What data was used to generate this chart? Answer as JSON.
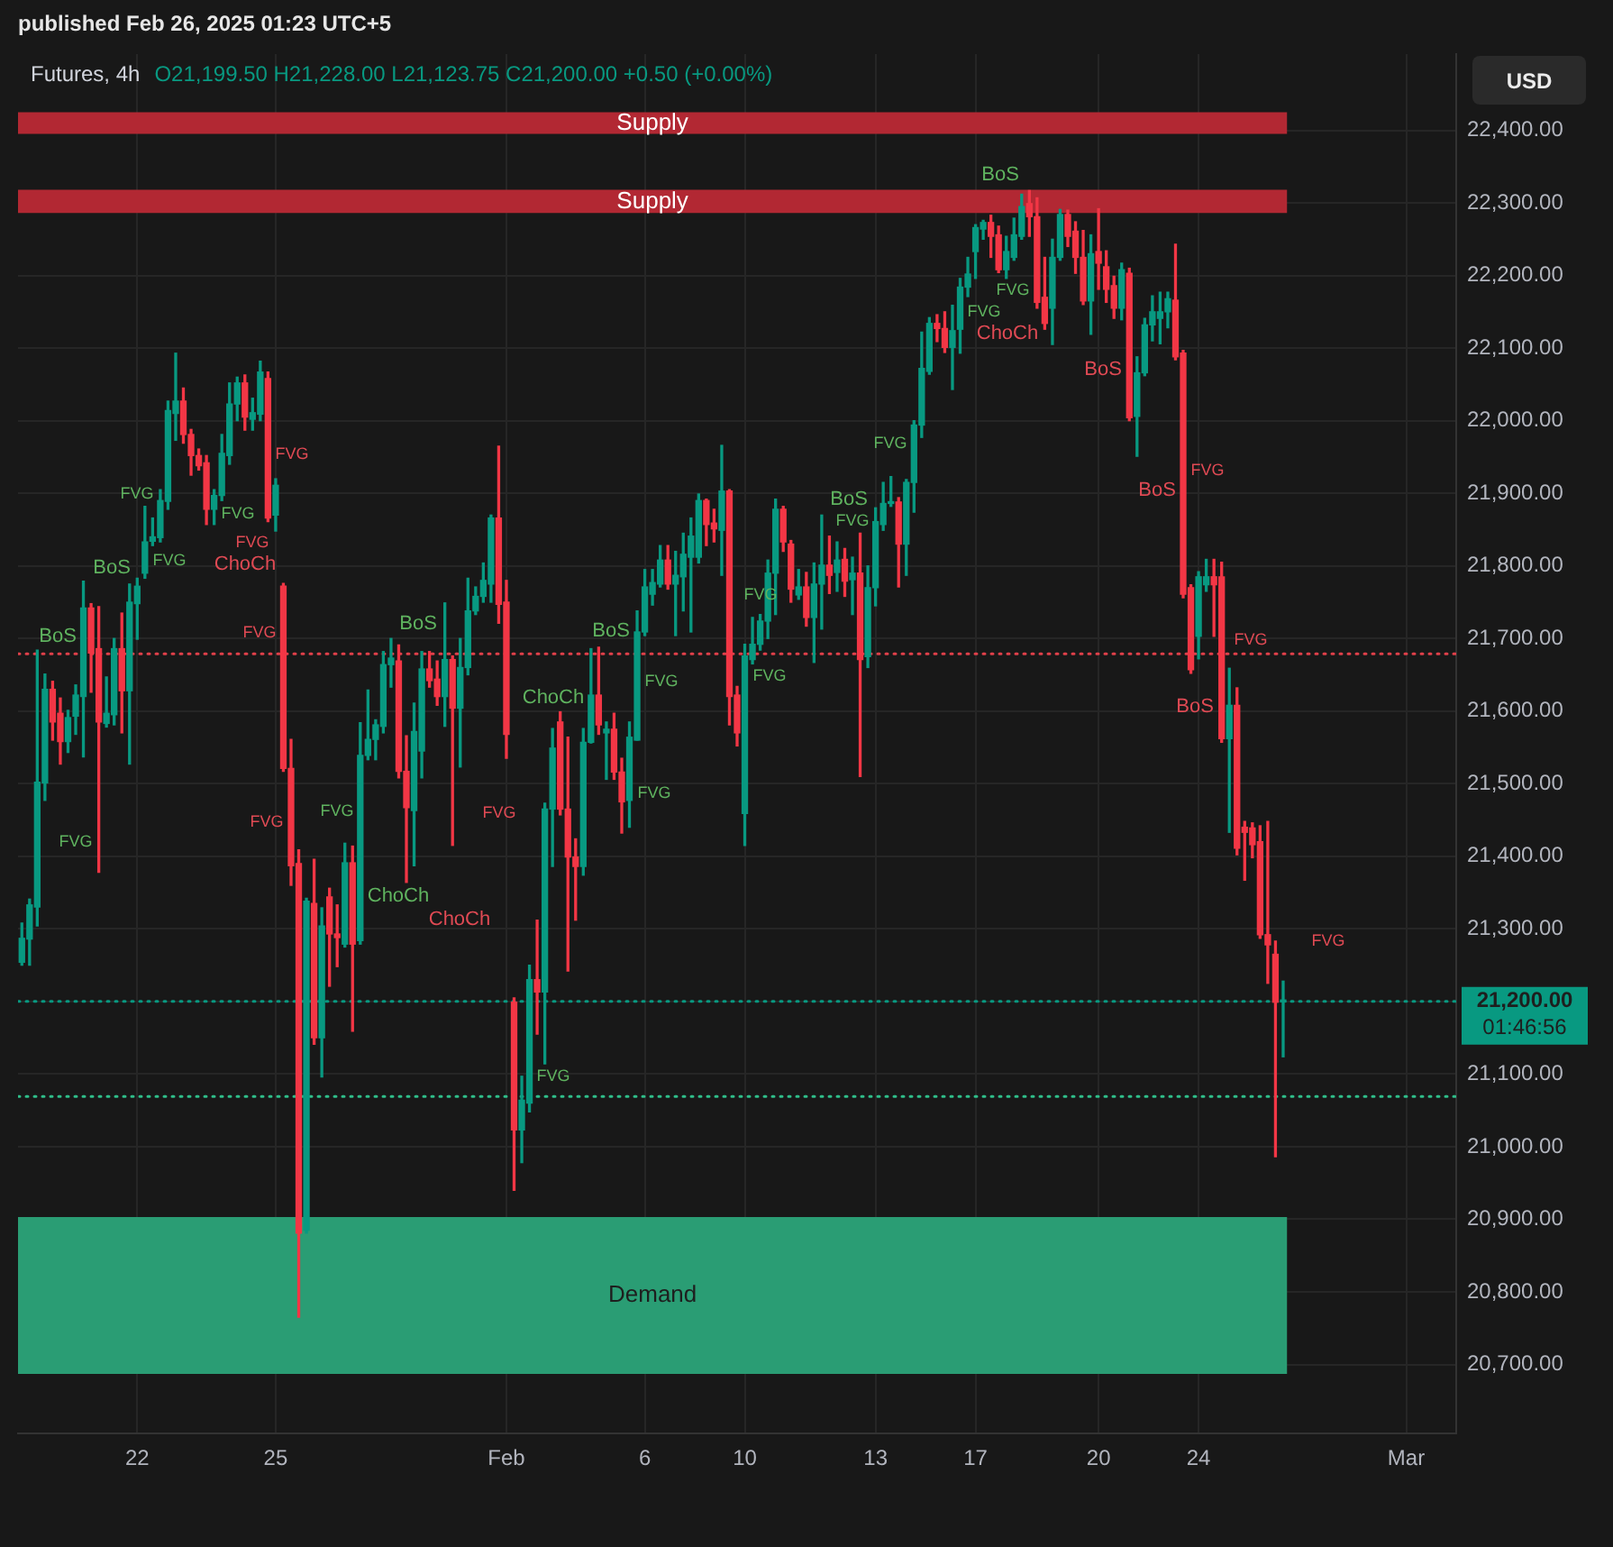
{
  "chart_data": {
    "type": "candlestick",
    "title": "Futures, 4h",
    "subtitle": "O21,199.50 H21,228.00 L21,123.75 C21,200.00 +0.50 (+0.00%)",
    "ylabel": "USD",
    "categories": [
      null,
      null,
      null,
      null,
      null,
      null,
      null,
      null,
      null,
      null,
      null,
      null,
      null,
      null,
      null,
      "22",
      null,
      null,
      null,
      null,
      null,
      null,
      null,
      null,
      null,
      null,
      null,
      null,
      null,
      null,
      null,
      null,
      null,
      "25",
      null,
      null,
      null,
      null,
      null,
      null,
      null,
      null,
      null,
      null,
      null,
      null,
      null,
      null,
      null,
      null,
      null,
      null,
      null,
      null,
      null,
      null,
      null,
      null,
      null,
      null,
      null,
      null,
      null,
      "Feb",
      null,
      null,
      null,
      null,
      null,
      null,
      null,
      null,
      null,
      null,
      null,
      null,
      null,
      null,
      null,
      null,
      null,
      "6",
      null,
      null,
      null,
      null,
      null,
      null,
      null,
      null,
      null,
      null,
      null,
      null,
      "10",
      null,
      null,
      null,
      null,
      null,
      null,
      null,
      null,
      null,
      null,
      null,
      null,
      null,
      null,
      null,
      null,
      "13",
      null,
      null,
      null,
      null,
      null,
      null,
      null,
      null,
      null,
      null,
      null,
      null,
      "17",
      null,
      null,
      null,
      null,
      null,
      null,
      null,
      null,
      null,
      null,
      null,
      null,
      null,
      null,
      null,
      "20",
      null,
      null,
      null,
      null,
      null,
      null,
      null,
      null,
      null,
      null,
      null,
      null,
      "24",
      null,
      null,
      null,
      null,
      null,
      null,
      null,
      null,
      null,
      null,
      null,
      null,
      null,
      null,
      null,
      null,
      null,
      null,
      null,
      null,
      null,
      null,
      null,
      null,
      null,
      null,
      "Mar",
      null,
      null,
      null,
      null,
      null,
      null
    ],
    "ohlc": [
      [
        21254,
        21308,
        21250,
        21287
      ],
      [
        21286,
        21341,
        21250,
        21333
      ],
      [
        21330,
        21684,
        21304,
        21502
      ],
      [
        21501,
        21651,
        21477,
        21630
      ],
      [
        21630,
        21641,
        21560,
        21585
      ],
      [
        21597,
        21618,
        21527,
        21558
      ],
      [
        21558,
        21601,
        21543,
        21591
      ],
      [
        21593,
        21636,
        21568,
        21622
      ],
      [
        21620,
        21779,
        21537,
        21742
      ],
      [
        21742,
        21748,
        21626,
        21680
      ],
      [
        21686,
        21744,
        21378,
        21585
      ],
      [
        21583,
        21647,
        21578,
        21597
      ],
      [
        21595,
        21700,
        21581,
        21686
      ],
      [
        21686,
        21735,
        21570,
        21628
      ],
      [
        21628,
        21775,
        21527,
        21750
      ],
      [
        21748,
        21783,
        21699,
        21772
      ],
      [
        21790,
        21882,
        21783,
        21833
      ],
      [
        21834,
        21866,
        21828,
        21840
      ],
      [
        21839,
        21905,
        21833,
        21890
      ],
      [
        21889,
        22027,
        21878,
        22014
      ],
      [
        22010,
        22093,
        21973,
        22027
      ],
      [
        22027,
        22045,
        21969,
        21981
      ],
      [
        21981,
        21988,
        21925,
        21952
      ],
      [
        21952,
        21961,
        21932,
        21938
      ],
      [
        21942,
        21952,
        21857,
        21878
      ],
      [
        21878,
        21905,
        21857,
        21897
      ],
      [
        21897,
        21981,
        21890,
        21955
      ],
      [
        21952,
        22052,
        21940,
        22023
      ],
      [
        22023,
        22060,
        22000,
        22052
      ],
      [
        22052,
        22063,
        21987,
        22005
      ],
      [
        22002,
        22031,
        21987,
        22011
      ],
      [
        22009,
        22082,
        22000,
        22067
      ],
      [
        22058,
        22067,
        21861,
        21866
      ],
      [
        21870,
        21920,
        21848,
        21911
      ],
      [
        21772,
        21776,
        21517,
        21521
      ],
      [
        21521,
        21561,
        21360,
        21387
      ],
      [
        21390,
        21409,
        20765,
        20881
      ],
      [
        20885,
        21342,
        20881,
        21338
      ],
      [
        21335,
        21396,
        21141,
        21150
      ],
      [
        21150,
        21329,
        21096,
        21304
      ],
      [
        21344,
        21356,
        21221,
        21293
      ],
      [
        21293,
        21333,
        21248,
        21288
      ],
      [
        21279,
        21418,
        21275,
        21391
      ],
      [
        21391,
        21414,
        21159,
        21279
      ],
      [
        21284,
        21584,
        21279,
        21539
      ],
      [
        21539,
        21629,
        21533,
        21561
      ],
      [
        21561,
        21588,
        21533,
        21581
      ],
      [
        21579,
        21682,
        21570,
        21664
      ],
      [
        21664,
        21700,
        21633,
        21673
      ],
      [
        21669,
        21691,
        21508,
        21517
      ],
      [
        21517,
        21566,
        21364,
        21467
      ],
      [
        21463,
        21611,
        21387,
        21572
      ],
      [
        21545,
        21682,
        21508,
        21658
      ],
      [
        21658,
        21682,
        21633,
        21642
      ],
      [
        21644,
        21669,
        21608,
        21620
      ],
      [
        21620,
        21749,
        21579,
        21671
      ],
      [
        21671,
        21676,
        21415,
        21604
      ],
      [
        21604,
        21700,
        21523,
        21660
      ],
      [
        21660,
        21783,
        21650,
        21738
      ],
      [
        21738,
        21771,
        21733,
        21758
      ],
      [
        21758,
        21804,
        21750,
        21780
      ],
      [
        21775,
        21870,
        21750,
        21866
      ],
      [
        21866,
        21965,
        21721,
        21747
      ],
      [
        21750,
        21780,
        21535,
        21568
      ],
      [
        21199,
        21205,
        20940,
        21023
      ],
      [
        21023,
        21097,
        20978,
        21064
      ],
      [
        21060,
        21250,
        21048,
        21230
      ],
      [
        21230,
        21312,
        21155,
        21213
      ],
      [
        21213,
        21473,
        21114,
        21465
      ],
      [
        21465,
        21576,
        21386,
        21549
      ],
      [
        21585,
        21599,
        21457,
        21465
      ],
      [
        21465,
        21564,
        21242,
        21399
      ],
      [
        21399,
        21424,
        21312,
        21386
      ],
      [
        21386,
        21576,
        21374,
        21557
      ],
      [
        21557,
        21686,
        21556,
        21622
      ],
      [
        21622,
        21688,
        21568,
        21581
      ],
      [
        21570,
        21585,
        21506,
        21575
      ],
      [
        21575,
        21597,
        21506,
        21516
      ],
      [
        21516,
        21535,
        21432,
        21475
      ],
      [
        21477,
        21585,
        21440,
        21564
      ],
      [
        21560,
        21738,
        21560,
        21709
      ],
      [
        21709,
        21795,
        21704,
        21771
      ],
      [
        21761,
        21795,
        21746,
        21777
      ],
      [
        21775,
        21828,
        21771,
        21808
      ],
      [
        21808,
        21828,
        21768,
        21775
      ],
      [
        21775,
        21820,
        21704,
        21787
      ],
      [
        21785,
        21845,
        21738,
        21816
      ],
      [
        21812,
        21866,
        21709,
        21841
      ],
      [
        21812,
        21899,
        21804,
        21890
      ],
      [
        21890,
        21892,
        21828,
        21857
      ],
      [
        21859,
        21878,
        21833,
        21851
      ],
      [
        21849,
        21966,
        21787,
        21903
      ],
      [
        21903,
        21905,
        21581,
        21620
      ],
      [
        21622,
        21634,
        21552,
        21570
      ],
      [
        21459,
        21692,
        21415,
        21676
      ],
      [
        21671,
        21729,
        21665,
        21692
      ],
      [
        21692,
        21733,
        21684,
        21724
      ],
      [
        21724,
        21808,
        21700,
        21790
      ],
      [
        21790,
        21892,
        21733,
        21878
      ],
      [
        21878,
        21882,
        21820,
        21833
      ],
      [
        21830,
        21835,
        21750,
        21768
      ],
      [
        21760,
        21795,
        21754,
        21771
      ],
      [
        21771,
        21791,
        21717,
        21729
      ],
      [
        21729,
        21804,
        21667,
        21775
      ],
      [
        21775,
        21870,
        21713,
        21801
      ],
      [
        21801,
        21841,
        21762,
        21787
      ],
      [
        21791,
        21833,
        21765,
        21808
      ],
      [
        21809,
        21824,
        21758,
        21779
      ],
      [
        21781,
        21812,
        21733,
        21790
      ],
      [
        21790,
        21845,
        21510,
        21671
      ],
      [
        21675,
        21800,
        21660,
        21770
      ],
      [
        21770,
        21880,
        21745,
        21861
      ],
      [
        21857,
        21915,
        21849,
        21886
      ],
      [
        21886,
        21923,
        21882,
        21888
      ],
      [
        21888,
        21894,
        21771,
        21830
      ],
      [
        21830,
        21919,
        21787,
        21915
      ],
      [
        21915,
        22000,
        21874,
        21994
      ],
      [
        21994,
        22122,
        21977,
        22072
      ],
      [
        22068,
        22142,
        22064,
        22134
      ],
      [
        22134,
        22146,
        22109,
        22127
      ],
      [
        22127,
        22150,
        22094,
        22101
      ],
      [
        22101,
        22159,
        22043,
        22124
      ],
      [
        22126,
        22196,
        22093,
        22184
      ],
      [
        22184,
        22225,
        22171,
        22202
      ],
      [
        22233,
        22270,
        22196,
        22266
      ],
      [
        22264,
        22276,
        22250,
        22273
      ],
      [
        22273,
        22283,
        22225,
        22254
      ],
      [
        22256,
        22268,
        22204,
        22208
      ],
      [
        22208,
        22254,
        22196,
        22233
      ],
      [
        22225,
        22279,
        22221,
        22256
      ],
      [
        22254,
        22312,
        22250,
        22295
      ],
      [
        22299,
        22317,
        22254,
        22281
      ],
      [
        22281,
        22307,
        22155,
        22163
      ],
      [
        22170,
        22225,
        22126,
        22134
      ],
      [
        22155,
        22250,
        22105,
        22225
      ],
      [
        22225,
        22291,
        22221,
        22284
      ],
      [
        22284,
        22290,
        22240,
        22254
      ],
      [
        22261,
        22274,
        22203,
        22225
      ],
      [
        22225,
        22262,
        22160,
        22165
      ],
      [
        22165,
        22256,
        22119,
        22230
      ],
      [
        22233,
        22292,
        22181,
        22217
      ],
      [
        22212,
        22234,
        22163,
        22181
      ],
      [
        22186,
        22199,
        22141,
        22155
      ],
      [
        22155,
        22217,
        22139,
        22208
      ],
      [
        22203,
        22210,
        22000,
        22004
      ],
      [
        22006,
        22088,
        21951,
        22066
      ],
      [
        22066,
        22141,
        22062,
        22132
      ],
      [
        22132,
        22172,
        22110,
        22150
      ],
      [
        22141,
        22177,
        22106,
        22150
      ],
      [
        22150,
        22177,
        22128,
        22168
      ],
      [
        22166,
        22243,
        22084,
        22088
      ],
      [
        22093,
        22097,
        21756,
        21761
      ],
      [
        21770,
        21774,
        21652,
        21657
      ],
      [
        21703,
        21792,
        21672,
        21785
      ],
      [
        21774,
        21809,
        21765,
        21785
      ],
      [
        21785,
        21809,
        21703,
        21774
      ],
      [
        21785,
        21805,
        21557,
        21562
      ],
      [
        21562,
        21659,
        21433,
        21608
      ],
      [
        21608,
        21632,
        21402,
        21411
      ],
      [
        21440,
        21448,
        21367,
        21433
      ],
      [
        21439,
        21446,
        21398,
        21416
      ],
      [
        21420,
        21442,
        21287,
        21292
      ],
      [
        21292,
        21448,
        21225,
        21278
      ],
      [
        21265,
        21283,
        20986,
        21199
      ],
      [
        21199.5,
        21228,
        21123.75,
        21200
      ],
      null,
      null,
      null,
      null,
      null,
      null,
      null,
      null,
      null,
      null,
      null,
      null,
      null,
      null,
      null,
      null,
      null,
      null,
      null,
      null,
      null,
      null
    ],
    "colors": [
      "#089981",
      "#089981",
      "#089981",
      "#089981",
      "#f23645",
      "#f23645",
      "#089981",
      "#089981",
      "#089981",
      "#f23645",
      "#f23645",
      "#089981",
      "#089981",
      "#f23645",
      "#089981",
      "#089981",
      "#089981",
      "#089981",
      "#089981",
      "#089981",
      "#089981",
      "#f23645",
      "#f23645",
      "#f23645",
      "#f23645",
      "#089981",
      "#089981",
      "#089981",
      "#089981",
      "#f23645",
      "#089981",
      "#089981",
      "#f23645",
      "#089981",
      "#f23645",
      "#f23645",
      "#f23645",
      "#089981",
      "#f23645",
      "#089981",
      "#f23645",
      "#f23645",
      "#089981",
      "#f23645",
      "#089981",
      "#089981",
      "#089981",
      "#089981",
      "#089981",
      "#f23645",
      "#f23645",
      "#089981",
      "#089981",
      "#f23645",
      "#f23645",
      "#089981",
      "#f23645",
      "#089981",
      "#089981",
      "#089981",
      "#089981",
      "#089981",
      "#f23645",
      "#f23645",
      "#f23645",
      "#089981",
      "#089981",
      "#f23645",
      "#089981",
      "#089981",
      "#f23645",
      "#f23645",
      "#f23645",
      "#089981",
      "#089981",
      "#f23645",
      "#089981",
      "#f23645",
      "#f23645",
      "#089981",
      "#089981",
      "#089981",
      "#089981",
      "#089981",
      "#f23645",
      "#089981",
      "#089981",
      "#089981",
      "#089981",
      "#f23645",
      "#f23645",
      "#089981",
      "#f23645",
      "#f23645",
      "#089981",
      "#089981",
      "#089981",
      "#089981",
      "#089981",
      "#f23645",
      "#f23645",
      "#089981",
      "#f23645",
      "#089981",
      "#089981",
      "#f23645",
      "#089981",
      "#f23645",
      "#089981",
      "#f23645",
      "#089981",
      "#089981",
      "#089981",
      "#089981",
      "#f23645",
      "#089981",
      "#089981",
      "#089981",
      "#089981",
      "#f23645",
      "#f23645",
      "#089981",
      "#089981",
      "#089981",
      "#089981",
      "#089981",
      "#f23645",
      "#f23645",
      "#089981",
      "#089981",
      "#089981",
      "#f23645",
      "#f23645",
      "#f23645",
      "#089981",
      "#089981",
      "#f23645",
      "#f23645",
      "#f23645",
      "#089981",
      "#f23645",
      "#f23645",
      "#f23645",
      "#089981",
      "#f23645",
      "#089981",
      "#089981",
      "#089981",
      "#089981",
      "#089981",
      "#f23645",
      "#f23645",
      "#f23645",
      "#089981",
      "#089981",
      "#f23645",
      "#f23645",
      "#089981",
      "#f23645",
      "#f23645",
      "#f23645",
      "#f23645",
      "#f23645",
      "#f23645",
      "#089981",
      null,
      null,
      null,
      null,
      null,
      null,
      null,
      null,
      null,
      null,
      null,
      null,
      null,
      null,
      null,
      null,
      null,
      null,
      null,
      null,
      null,
      null
    ],
    "ylim": [
      20605,
      22505
    ],
    "yticks": [
      {
        "value": 20700,
        "label": "20,700.00"
      },
      {
        "value": 20800,
        "label": "20,800.00"
      },
      {
        "value": 20900,
        "label": "20,900.00"
      },
      {
        "value": 21000,
        "label": "21,000.00"
      },
      {
        "value": 21100,
        "label": "21,100.00"
      },
      {
        "value": 21200,
        "label": null
      },
      {
        "value": 21300,
        "label": "21,300.00"
      },
      {
        "value": 21400,
        "label": "21,400.00"
      },
      {
        "value": 21500,
        "label": "21,500.00"
      },
      {
        "value": 21600,
        "label": "21,600.00"
      },
      {
        "value": 21700,
        "label": "21,700.00"
      },
      {
        "value": 21800,
        "label": "21,800.00"
      },
      {
        "value": 21900,
        "label": "21,900.00"
      },
      {
        "value": 22000,
        "label": "22,000.00"
      },
      {
        "value": 22100,
        "label": "22,100.00"
      },
      {
        "value": 22200,
        "label": "22,200.00"
      },
      {
        "value": 22300,
        "label": "22,300.00"
      },
      {
        "value": 22400,
        "label": "22,400.00"
      }
    ],
    "grid": true,
    "bands": [
      {
        "axis": "y",
        "from": 22395,
        "to": 22425,
        "label": "Supply",
        "color": "#b22833"
      },
      {
        "axis": "y",
        "from": 22286,
        "to": 22318,
        "label": "Supply",
        "color": "#b22833"
      },
      {
        "axis": "y",
        "from": 20687,
        "to": 20903,
        "label": "Demand",
        "color": "#2a9d74"
      }
    ],
    "ref_lines": [
      {
        "axis": "y",
        "value": 21200,
        "label": "21,200.00",
        "color": "#089981",
        "line_style": "dotted"
      },
      {
        "axis": "y",
        "value": 21069,
        "color": "#2fbf8a",
        "line_style": "dotted"
      },
      {
        "axis": "y",
        "value": 21679,
        "color": "#e0404a",
        "line_style": "dotted"
      }
    ],
    "annotations": [
      "published Feb 26, 2025 01:23 UTC+5",
      "01:46:56",
      "BoS",
      "BoS",
      "FVG",
      "FVG",
      "FVG",
      "FVG",
      "ChoCh",
      "FVG",
      "FVG",
      "FVG",
      "FVG",
      "ChoCh",
      "FVG",
      "BoS",
      "ChoCh",
      "FVG",
      "FVG",
      "ChoCh",
      "BoS",
      "FVG",
      "FVG",
      "FVG",
      "FVG",
      "BoS",
      "FVG",
      "FVG",
      "FVG",
      "BoS",
      "ChoCh",
      "FVG",
      "BoS",
      "BoS",
      "FVG",
      "FVG",
      "BoS",
      "FVG"
    ]
  }
}
